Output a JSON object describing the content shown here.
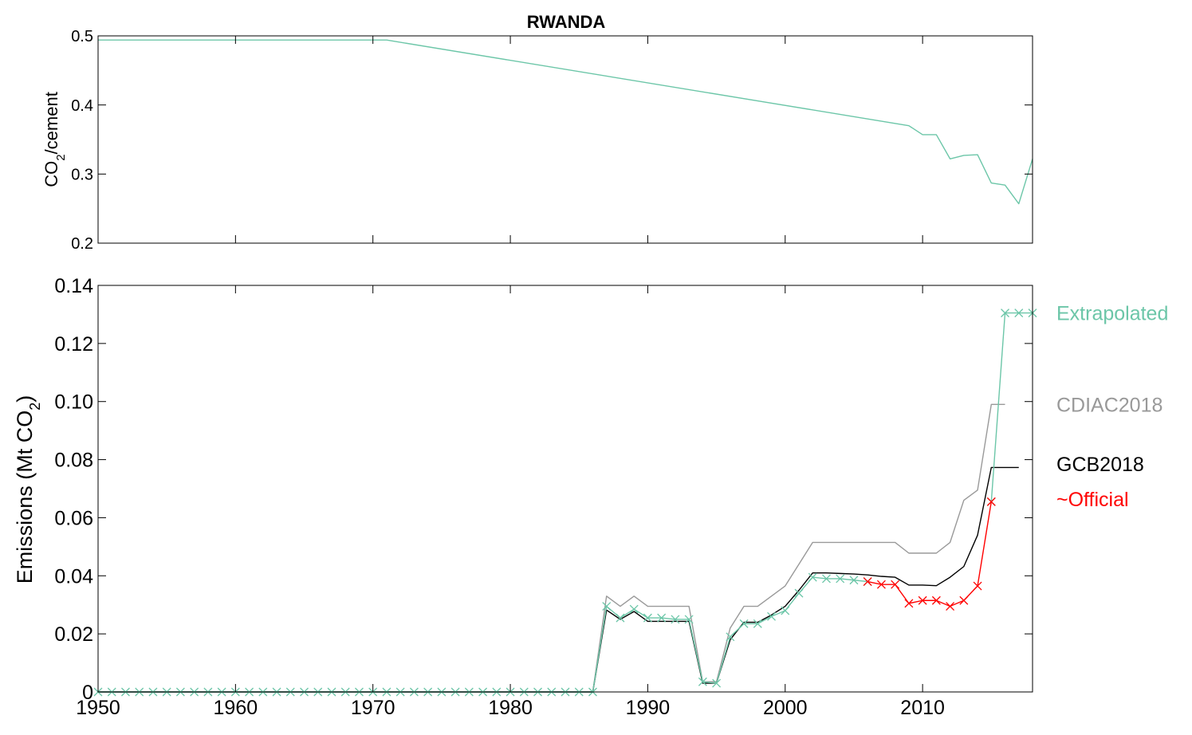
{
  "chart_data": [
    {
      "type": "line",
      "title": "RWANDA",
      "ylabel": {
        "main": "CO",
        "sub": "2",
        "rest": "/cement"
      },
      "xlim": [
        1950,
        2018
      ],
      "ylim": [
        0.2,
        0.5
      ],
      "xticks": [
        1950,
        1960,
        1970,
        1980,
        1990,
        2000,
        2010
      ],
      "yticks": [
        0.2,
        0.3,
        0.4,
        0.5
      ],
      "ytick_labels": [
        "0.2",
        "0.3",
        "0.4",
        "0.5"
      ],
      "colors": {
        "line": "#6cc6a8"
      },
      "series": [
        {
          "x": [
            1950,
            1971,
            2009,
            2010,
            2011,
            2012,
            2013,
            2014,
            2015,
            2016,
            2017,
            2018
          ],
          "values": [
            0.494,
            0.494,
            0.37,
            0.357,
            0.357,
            0.322,
            0.327,
            0.328,
            0.287,
            0.284,
            0.257,
            0.322
          ]
        }
      ]
    },
    {
      "type": "line",
      "ylabel": {
        "main": "Emissions (Mt CO",
        "sub": "2",
        "rest": ")"
      },
      "xlim": [
        1950,
        2018
      ],
      "ylim": [
        0,
        0.14
      ],
      "xticks": [
        1950,
        1960,
        1970,
        1980,
        1990,
        2000,
        2010
      ],
      "yticks": [
        0,
        0.02,
        0.04,
        0.06,
        0.08,
        0.1,
        0.12,
        0.14
      ],
      "ytick_labels": [
        "0",
        "0.02",
        "0.04",
        "0.06",
        "0.08",
        "0.10",
        "0.12",
        "0.14"
      ],
      "series": [
        {
          "name": "CDIAC2018",
          "color": "#999999",
          "marker": "none",
          "x": [
            1950,
            1951,
            1952,
            1953,
            1954,
            1955,
            1956,
            1957,
            1958,
            1959,
            1960,
            1961,
            1962,
            1963,
            1964,
            1965,
            1966,
            1967,
            1968,
            1969,
            1970,
            1971,
            1972,
            1973,
            1974,
            1975,
            1976,
            1977,
            1978,
            1979,
            1980,
            1981,
            1982,
            1983,
            1984,
            1985,
            1986,
            1987,
            1988,
            1989,
            1990,
            1991,
            1992,
            1993,
            1994,
            1995,
            1996,
            1997,
            1998,
            1999,
            2000,
            2001,
            2002,
            2003,
            2004,
            2005,
            2006,
            2007,
            2008,
            2009,
            2010,
            2011,
            2012,
            2013,
            2014,
            2015,
            2016
          ],
          "values": [
            0,
            0,
            0,
            0,
            0,
            0,
            0,
            0,
            0,
            0,
            0,
            0,
            0,
            0,
            0,
            0,
            0,
            0,
            0,
            0,
            0,
            0,
            0,
            0,
            0,
            0,
            0,
            0,
            0,
            0,
            0,
            0,
            0,
            0,
            0,
            0,
            0,
            0.033,
            0.0295,
            0.033,
            0.0295,
            0.0295,
            0.0295,
            0.0295,
            0.0035,
            0.0035,
            0.022,
            0.0295,
            0.0295,
            0.033,
            0.0365,
            0.044,
            0.0515,
            0.0515,
            0.0515,
            0.0515,
            0.0515,
            0.0515,
            0.0515,
            0.0478,
            0.0478,
            0.0478,
            0.0515,
            0.066,
            0.0695,
            0.099,
            0.099
          ]
        },
        {
          "name": "GCB2018",
          "color": "#000000",
          "marker": "none",
          "x": [
            1950,
            1951,
            1952,
            1953,
            1954,
            1955,
            1956,
            1957,
            1958,
            1959,
            1960,
            1961,
            1962,
            1963,
            1964,
            1965,
            1966,
            1967,
            1968,
            1969,
            1970,
            1971,
            1972,
            1973,
            1974,
            1975,
            1976,
            1977,
            1978,
            1979,
            1980,
            1981,
            1982,
            1983,
            1984,
            1985,
            1986,
            1987,
            1988,
            1989,
            1990,
            1991,
            1992,
            1993,
            1994,
            1995,
            1996,
            1997,
            1998,
            1999,
            2000,
            2001,
            2002,
            2003,
            2004,
            2005,
            2006,
            2007,
            2008,
            2009,
            2010,
            2011,
            2012,
            2013,
            2014,
            2015,
            2016,
            2017
          ],
          "values": [
            0,
            0,
            0,
            0,
            0,
            0,
            0,
            0,
            0,
            0,
            0,
            0,
            0,
            0,
            0,
            0,
            0,
            0,
            0,
            0,
            0,
            0,
            0,
            0,
            0,
            0,
            0,
            0,
            0,
            0,
            0,
            0,
            0,
            0,
            0,
            0,
            0,
            0.0282,
            0.025,
            0.0277,
            0.0243,
            0.0243,
            0.0243,
            0.0243,
            0.003,
            0.003,
            0.018,
            0.024,
            0.024,
            0.0265,
            0.0295,
            0.035,
            0.041,
            0.041,
            0.0408,
            0.0406,
            0.0403,
            0.0398,
            0.0395,
            0.0368,
            0.0368,
            0.0366,
            0.0395,
            0.0432,
            0.054,
            0.0773,
            0.0773,
            0.0773
          ]
        },
        {
          "name": "Extrapolated",
          "color": "#6cc6a8",
          "marker": "x",
          "x": [
            1950,
            1951,
            1952,
            1953,
            1954,
            1955,
            1956,
            1957,
            1958,
            1959,
            1960,
            1961,
            1962,
            1963,
            1964,
            1965,
            1966,
            1967,
            1968,
            1969,
            1970,
            1971,
            1972,
            1973,
            1974,
            1975,
            1976,
            1977,
            1978,
            1979,
            1980,
            1981,
            1982,
            1983,
            1984,
            1985,
            1986,
            1987,
            1988,
            1989,
            1990,
            1991,
            1992,
            1993,
            1994,
            1995,
            1996,
            1997,
            1998,
            1999,
            2000,
            2001,
            2002,
            2003,
            2004,
            2005,
            2006,
            2015,
            2016,
            2017,
            2018
          ],
          "values": [
            0,
            0,
            0,
            0,
            0,
            0,
            0,
            0,
            0,
            0,
            0,
            0,
            0,
            0,
            0,
            0,
            0,
            0,
            0,
            0,
            0,
            0,
            0,
            0,
            0,
            0,
            0,
            0,
            0,
            0,
            0,
            0,
            0,
            0,
            0,
            0,
            0,
            0.0295,
            0.0255,
            0.0285,
            0.0255,
            0.0255,
            0.025,
            0.025,
            0.0035,
            0.003,
            0.019,
            0.0235,
            0.0235,
            0.026,
            0.028,
            0.034,
            0.0395,
            0.039,
            0.039,
            0.0385,
            0.038,
            0.0655,
            0.1305,
            0.1305,
            0.1305
          ],
          "break_before_index": 57
        },
        {
          "name": "~Official",
          "color": "#ff0000",
          "marker": "x",
          "x": [
            2006,
            2007,
            2008,
            2009,
            2010,
            2011,
            2012,
            2013,
            2014,
            2015
          ],
          "values": [
            0.038,
            0.037,
            0.037,
            0.0305,
            0.0315,
            0.0315,
            0.0295,
            0.0315,
            0.0365,
            0.0655
          ]
        }
      ],
      "legend": [
        {
          "label": "Extrapolated",
          "color": "#6cc6a8",
          "y": 0.1305
        },
        {
          "label": "CDIAC2018",
          "color": "#999999",
          "y": 0.099
        },
        {
          "label": "GCB2018",
          "color": "#000000",
          "y": 0.0785
        },
        {
          "label": "~Official",
          "color": "#ff0000",
          "y": 0.0665
        }
      ],
      "legend_position": "right"
    }
  ]
}
